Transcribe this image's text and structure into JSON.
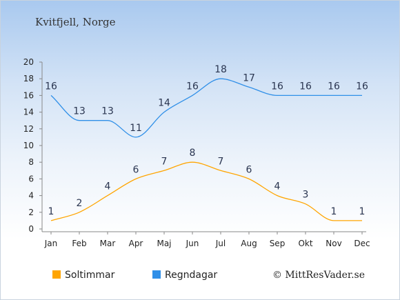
{
  "title": "Kvitfjell, Norge",
  "credit": "© MittResVader.se",
  "chart_data": {
    "type": "line",
    "categories": [
      "Jan",
      "Feb",
      "Mar",
      "Apr",
      "Maj",
      "Jun",
      "Jul",
      "Aug",
      "Sep",
      "Okt",
      "Nov",
      "Dec"
    ],
    "ylim": [
      0,
      20
    ],
    "yticks": [
      0,
      2,
      4,
      6,
      8,
      10,
      12,
      14,
      16,
      18,
      20
    ],
    "grid": false,
    "legend_position": "bottom-left",
    "series": [
      {
        "name": "Soltimmar",
        "color": "#ffa500",
        "values": [
          1,
          2,
          4,
          6,
          7,
          8,
          7,
          6,
          4,
          3,
          1,
          1
        ]
      },
      {
        "name": "Regndagar",
        "color": "#2f8fe8",
        "values": [
          16,
          13,
          13,
          11,
          14,
          16,
          18,
          17,
          16,
          16,
          16,
          16
        ]
      }
    ]
  }
}
